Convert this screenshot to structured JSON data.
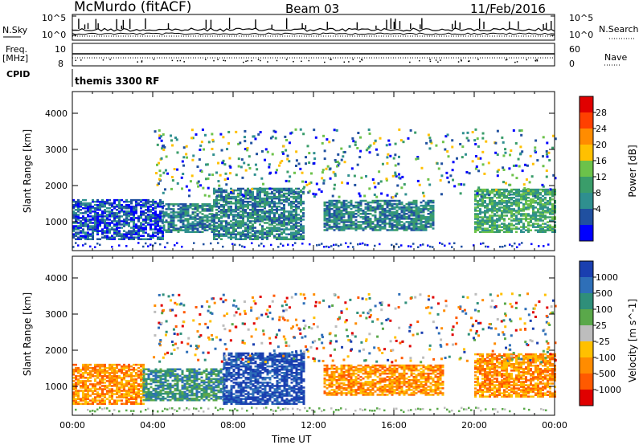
{
  "header": {
    "station": "McMurdo (fitACF)",
    "beam": "Beam 03",
    "date": "11/Feb/2016"
  },
  "left_labels": {
    "nsky": "N.Sky",
    "freq": "Freq.",
    "freq_unit": "[MHz]",
    "cpid": "CPID"
  },
  "right_labels": {
    "nsearch": "N.Search",
    "nave": "Nave"
  },
  "cpid_value": "themis 3300 RF",
  "panels": {
    "noise": {
      "left_ticks": [
        "10^5",
        "10^0"
      ],
      "right_ticks": [
        "10^5",
        "10^0"
      ]
    },
    "freq": {
      "left_ticks": [
        "10",
        "8"
      ],
      "right_ticks": [
        "60",
        "0"
      ]
    }
  },
  "chart_data": [
    {
      "type": "heatmap",
      "title": "",
      "ylabel": "Slant Range [km]",
      "ylim": [
        200,
        4600
      ],
      "yticks": [
        1000,
        2000,
        3000,
        4000
      ],
      "xlabel": "",
      "colorbar": {
        "label": "Power [dB]",
        "ticks": [
          "28",
          "24",
          "20",
          "16",
          "12",
          "8",
          "4"
        ],
        "colors": [
          "#e00000",
          "#ff4000",
          "#ff8c00",
          "#ffc000",
          "#6cc24a",
          "#3a9d6a",
          "#2f8f8f",
          "#2050a0",
          "#0000ff"
        ]
      },
      "bands": [
        {
          "start": 0.0,
          "end": 4.5,
          "lo": 500,
          "hi": 1600,
          "level": 7
        },
        {
          "start": 4.5,
          "end": 7.0,
          "lo": 700,
          "hi": 1500,
          "level": 6
        },
        {
          "start": 7.0,
          "end": 11.5,
          "lo": 500,
          "hi": 1900,
          "level": 6
        },
        {
          "start": 12.5,
          "end": 18.0,
          "lo": 750,
          "hi": 1600,
          "level": 6
        },
        {
          "start": 20.0,
          "end": 24.0,
          "lo": 700,
          "hi": 1900,
          "level": 5
        }
      ]
    },
    {
      "type": "heatmap",
      "title": "",
      "ylabel": "Slant Range [km]",
      "ylim": [
        200,
        4600
      ],
      "yticks": [
        1000,
        2000,
        3000,
        4000
      ],
      "xlabel": "Time UT",
      "xticks": [
        "00:00",
        "04:00",
        "08:00",
        "12:00",
        "16:00",
        "20:00",
        "00:00"
      ],
      "colorbar": {
        "label": "Velocity [m s^-1]",
        "ticks": [
          "1000",
          "500",
          "100",
          "25",
          "-25",
          "-100",
          "-500",
          "-1000"
        ],
        "colors": [
          "#1a3fb0",
          "#2e6fb8",
          "#2f8f7a",
          "#5aa84a",
          "#bdbdbd",
          "#ffc000",
          "#ff8c00",
          "#ff5a00",
          "#e00000"
        ]
      },
      "bands": [
        {
          "start": 0.0,
          "end": 3.5,
          "lo": 500,
          "hi": 1600,
          "level": 6
        },
        {
          "start": 3.5,
          "end": 7.5,
          "lo": 600,
          "hi": 1500,
          "level": 2
        },
        {
          "start": 7.5,
          "end": 11.5,
          "lo": 500,
          "hi": 1900,
          "level": 0
        },
        {
          "start": 12.5,
          "end": 18.5,
          "lo": 750,
          "hi": 1600,
          "level": 6
        },
        {
          "start": 20.0,
          "end": 24.0,
          "lo": 700,
          "hi": 1900,
          "level": 6
        }
      ]
    }
  ]
}
